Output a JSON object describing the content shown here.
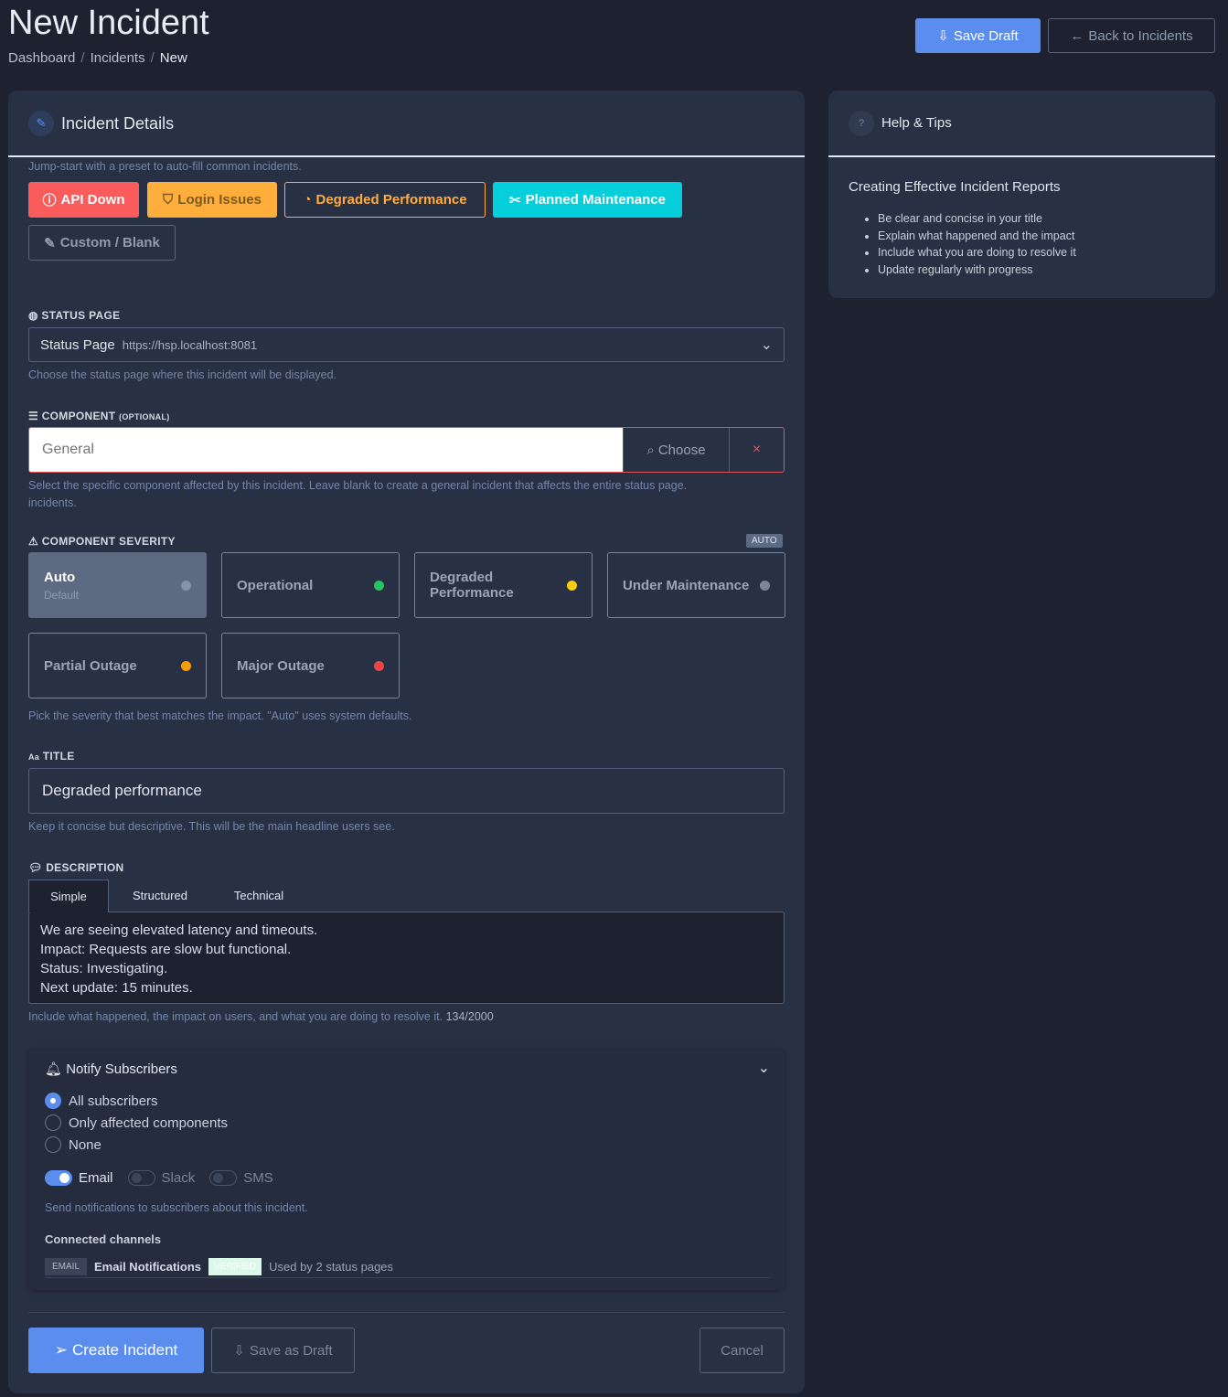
{
  "page": {
    "title": "New Incident",
    "breadcrumb": [
      "Dashboard",
      "Incidents",
      "New"
    ]
  },
  "header": {
    "save_draft": "Save Draft",
    "back": "Back to Incidents"
  },
  "details": {
    "title": "Incident Details",
    "preset_hint": "Jump-start with a preset to auto-fill common incidents.",
    "presets": [
      {
        "label": "API Down",
        "icon": "alert-circle-icon"
      },
      {
        "label": "Login Issues",
        "icon": "shield-icon"
      },
      {
        "label": "Degraded Performance",
        "icon": "speedometer-icon"
      },
      {
        "label": "Planned Maintenance",
        "icon": "tools-icon"
      },
      {
        "label": "Custom / Blank",
        "icon": "edit-icon"
      }
    ]
  },
  "status_page": {
    "label": "STATUS PAGE",
    "value": "Status Page",
    "url": "https://hsp.localhost:8081",
    "help": "Choose the status page where this incident will be displayed."
  },
  "component": {
    "label": "COMPONENT",
    "optional": "(OPTIONAL)",
    "placeholder": "General",
    "choose": "Choose",
    "clear": "×",
    "help": "Select the specific component affected by this incident. Leave blank to create a general incident that affects the entire status page.",
    "help2": "incidents."
  },
  "severity": {
    "label": "COMPONENT SEVERITY",
    "badge": "AUTO",
    "help": "Pick the severity that best matches the impact. \"Auto\" uses system defaults.",
    "options": [
      {
        "label": "Auto",
        "sub": "Default",
        "color": "#8592a8",
        "selected": true
      },
      {
        "label": "Operational",
        "color": "#22c55e"
      },
      {
        "label": "Degraded Performance",
        "color": "#facc15"
      },
      {
        "label": "Under Maintenance",
        "color": "#7b8799"
      },
      {
        "label": "Partial Outage",
        "color": "#f59e0b"
      },
      {
        "label": "Major Outage",
        "color": "#ef4444"
      }
    ]
  },
  "title_field": {
    "label": "TITLE",
    "icon_text": "Aa",
    "value": "Degraded performance",
    "help": "Keep it concise but descriptive. This will be the main headline users see."
  },
  "description": {
    "label": "DESCRIPTION",
    "tabs": [
      "Simple",
      "Structured",
      "Technical"
    ],
    "active_tab": "Simple",
    "lines": [
      "We are seeing elevated latency and timeouts.",
      "Impact: Requests are slow but functional.",
      "Status: Investigating.",
      "Next update: 15 minutes."
    ],
    "help": "Include what happened, the impact on users, and what you are doing to resolve it.",
    "count": "134/2000"
  },
  "notify": {
    "title": "Notify Subscribers",
    "options": [
      "All subscribers",
      "Only affected components",
      "None"
    ],
    "selected": "All subscribers",
    "channels": [
      {
        "label": "Email",
        "on": true
      },
      {
        "label": "Slack",
        "on": false
      },
      {
        "label": "SMS",
        "on": false
      }
    ],
    "help": "Send notifications to subscribers about this incident.",
    "connected_label": "Connected channels",
    "connected": {
      "type": "EMAIL",
      "name": "Email Notifications",
      "badge": "VERIFIED",
      "usage": "Used by 2 status pages"
    }
  },
  "actions": {
    "create": "Create Incident",
    "save_draft": "Save as Draft",
    "cancel": "Cancel"
  },
  "sidebar": {
    "title": "Help & Tips",
    "heading": "Creating Effective Incident Reports",
    "tips": [
      "Be clear and concise in your title",
      "Explain what happened and the impact",
      "Include what you are doing to resolve it",
      "Update regularly with progress"
    ]
  },
  "colors": {
    "primary": "#5b8def",
    "danger": "#fa5c5c",
    "warning": "#ffad3b",
    "info": "#06cfdc"
  }
}
